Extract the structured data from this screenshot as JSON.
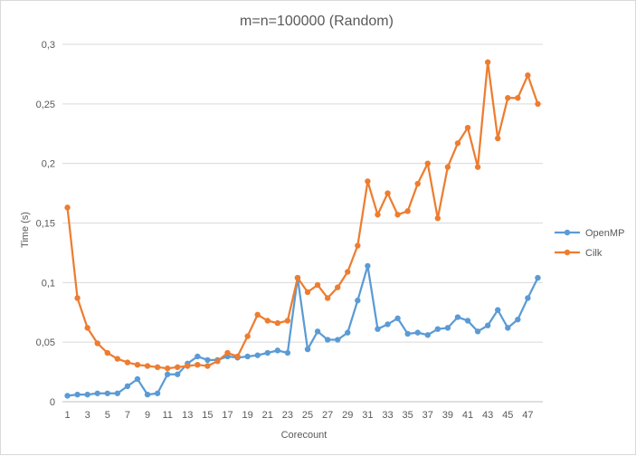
{
  "chart_data": {
    "type": "line",
    "title": "m=n=100000 (Random)",
    "xlabel": "Corecount",
    "ylabel": "Time (s)",
    "ylim": [
      0,
      0.3
    ],
    "yticks": [
      "0",
      "0,05",
      "0,1",
      "0,15",
      "0,2",
      "0,25",
      "0,3"
    ],
    "ytick_values": [
      0,
      0.05,
      0.1,
      0.15,
      0.2,
      0.25,
      0.3
    ],
    "x": [
      1,
      2,
      3,
      4,
      5,
      6,
      7,
      8,
      9,
      10,
      11,
      12,
      13,
      14,
      15,
      16,
      17,
      18,
      19,
      20,
      21,
      22,
      23,
      24,
      25,
      26,
      27,
      28,
      29,
      30,
      31,
      32,
      33,
      34,
      35,
      36,
      37,
      38,
      39,
      40,
      41,
      42,
      43,
      44,
      45,
      46,
      47,
      48
    ],
    "xtick_labels": [
      "1",
      "3",
      "5",
      "7",
      "9",
      "11",
      "13",
      "15",
      "17",
      "19",
      "21",
      "23",
      "25",
      "27",
      "29",
      "31",
      "33",
      "35",
      "37",
      "39",
      "41",
      "43",
      "45",
      "47"
    ],
    "grid": true,
    "legend_position": "right",
    "series": [
      {
        "name": "OpenMP",
        "color": "#5b9bd5",
        "values": [
          0.005,
          0.006,
          0.006,
          0.007,
          0.007,
          0.007,
          0.013,
          0.019,
          0.006,
          0.007,
          0.023,
          0.023,
          0.032,
          0.038,
          0.035,
          0.035,
          0.038,
          0.037,
          0.038,
          0.039,
          0.041,
          0.043,
          0.041,
          0.104,
          0.044,
          0.059,
          0.052,
          0.052,
          0.058,
          0.085,
          0.114,
          0.061,
          0.065,
          0.07,
          0.057,
          0.058,
          0.056,
          0.061,
          0.062,
          0.071,
          0.068,
          0.059,
          0.064,
          0.077,
          0.062,
          0.069,
          0.087,
          0.104
        ]
      },
      {
        "name": "Cilk",
        "color": "#ed7d31",
        "values": [
          0.163,
          0.087,
          0.062,
          0.049,
          0.041,
          0.036,
          0.033,
          0.031,
          0.03,
          0.029,
          0.028,
          0.029,
          0.03,
          0.031,
          0.03,
          0.034,
          0.041,
          0.038,
          0.055,
          0.073,
          0.068,
          0.066,
          0.068,
          0.104,
          0.092,
          0.098,
          0.087,
          0.096,
          0.109,
          0.131,
          0.185,
          0.157,
          0.175,
          0.157,
          0.16,
          0.183,
          0.2,
          0.154,
          0.197,
          0.217,
          0.23,
          0.197,
          0.285,
          0.221,
          0.255,
          0.255,
          0.274,
          0.25
        ]
      }
    ]
  }
}
